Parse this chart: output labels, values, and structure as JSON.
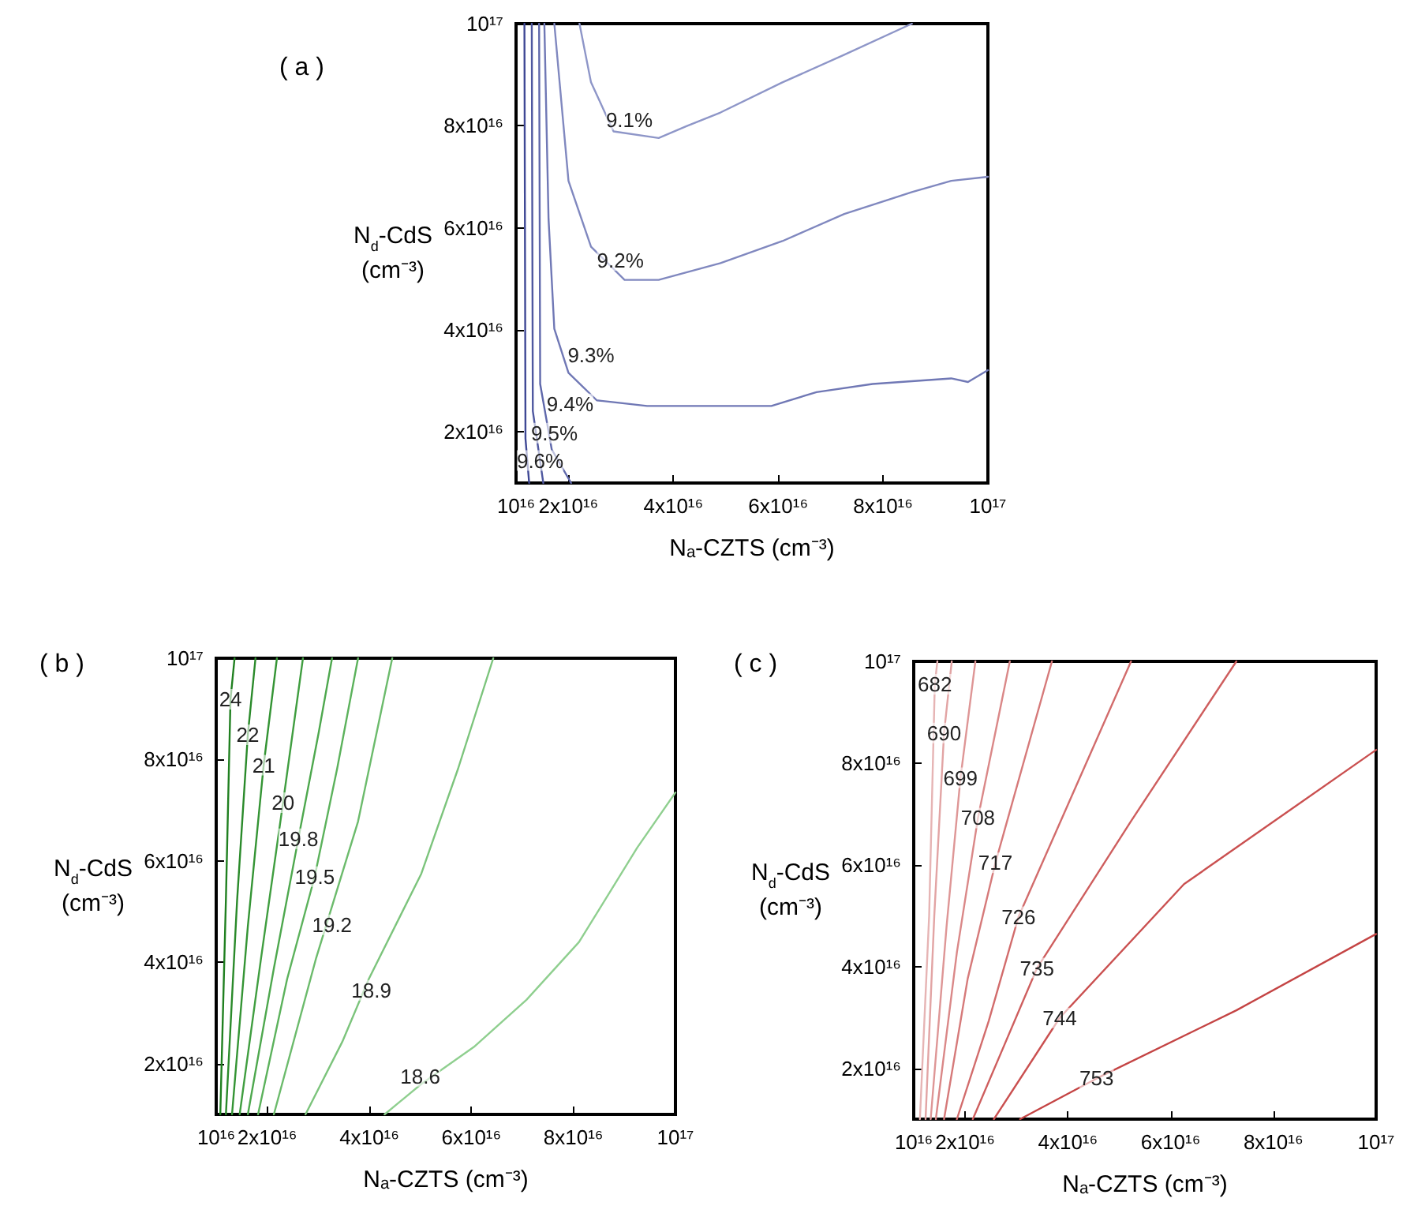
{
  "chart_data": [
    {
      "type": "line",
      "title": "( a )",
      "xlabel": "Nₐ-CZTS (cm⁻³)",
      "ylabel": "N$_{d}$-CdS\n(cm⁻³)",
      "xlim": [
        1e+16,
        1e+17
      ],
      "ylim": [
        1e+16,
        1e+17
      ],
      "xticks": [
        {
          "value": 1e+16,
          "label": "10¹⁶"
        },
        {
          "value": 2e+16,
          "label": "2x10¹⁶"
        },
        {
          "value": 4e+16,
          "label": "4x10¹⁶"
        },
        {
          "value": 6e+16,
          "label": "6x10¹⁶"
        },
        {
          "value": 8e+16,
          "label": "8x10¹⁶"
        },
        {
          "value": 1e+17,
          "label": "10¹⁷"
        }
      ],
      "yticks": [
        {
          "value": 2e+16,
          "label": "2x10¹⁶"
        },
        {
          "value": 4e+16,
          "label": "4x10¹⁶"
        },
        {
          "value": 6e+16,
          "label": "6x10¹⁶"
        },
        {
          "value": 8e+16,
          "label": "8x10¹⁶"
        },
        {
          "value": 1e+17,
          "label": "10¹⁷"
        }
      ],
      "grid": false,
      "marker": "none",
      "line_style": "solid",
      "series": [
        {
          "color": "#8e96c8",
          "x": [
            2.21e+16,
            2.43e+16,
            2.86e+16,
            3.72e+16,
            4.25e+16,
            4.9e+16,
            6.08e+16,
            7.26e+16,
            8.55e+16
          ],
          "values": [
            1e+17,
            8.85e+16,
            7.89e+16,
            7.76e+16,
            7.99e+16,
            8.26e+16,
            8.85e+16,
            9.39e+16,
            1e+17
          ]
        },
        {
          "color": "#8088bf",
          "x": [
            1.73e+16,
            2e+16,
            2.43e+16,
            3.07e+16,
            3.72e+16,
            4.9e+16,
            6.08e+16,
            7.26e+16,
            8.55e+16,
            9.3e+16,
            1e+17
          ],
          "values": [
            1e+17,
            6.92e+16,
            5.63e+16,
            4.98e+16,
            4.98e+16,
            5.31e+16,
            5.74e+16,
            6.27e+16,
            6.7e+16,
            6.92e+16,
            7e+16
          ]
        },
        {
          "color": "#7078b5",
          "x": [
            1.54e+16,
            1.62e+16,
            1.73e+16,
            2e+16,
            2.54e+16,
            3.5e+16,
            5.87e+16,
            6.73e+16,
            7.8e+16,
            9.3e+16,
            9.62e+16,
            1e+17
          ],
          "values": [
            1e+17,
            6.17e+16,
            4.02e+16,
            3.16e+16,
            2.62e+16,
            2.51e+16,
            2.51e+16,
            2.78e+16,
            2.94e+16,
            3.05e+16,
            2.98e+16,
            3.21e+16
          ]
        },
        {
          "color": "#5f68ab",
          "x": [
            1.44e+16,
            1.46e+16,
            1.68e+16,
            2.05e+16
          ],
          "values": [
            1e+17,
            2.94e+16,
            1.66e+16,
            1e+16
          ]
        },
        {
          "color": "#4f58a0",
          "x": [
            1.3e+16,
            1.32e+16,
            1.52e+16
          ],
          "values": [
            1e+17,
            2.41e+16,
            1e+16
          ]
        },
        {
          "color": "#3f4895",
          "x": [
            1.16e+16,
            1.18e+16,
            1.25e+16
          ],
          "values": [
            1e+17,
            1.87e+16,
            1e+16
          ]
        }
      ],
      "annotations": [
        {
          "text": "9.1%",
          "x": 3.16e+16,
          "y": 8.12e+16
        },
        {
          "text": "9.2%",
          "x": 2.99e+16,
          "y": 5.36e+16
        },
        {
          "text": "9.3%",
          "x": 2.43e+16,
          "y": 3.5e+16
        },
        {
          "text": "9.4%",
          "x": 2.03e+16,
          "y": 2.55e+16
        },
        {
          "text": "9.5%",
          "x": 1.73e+16,
          "y": 1.98e+16
        },
        {
          "text": "9.6%",
          "x": 1.46e+16,
          "y": 1.44e+16
        }
      ]
    },
    {
      "type": "line",
      "title": "( b )",
      "xlabel": "Nₐ-CZTS (cm⁻³)",
      "ylabel": "N$_{d}$-CdS\n(cm⁻³)",
      "xlim": [
        1e+16,
        1e+17
      ],
      "ylim": [
        1e+16,
        1e+17
      ],
      "xticks": [
        {
          "value": 1e+16,
          "label": "10¹⁶"
        },
        {
          "value": 2e+16,
          "label": "2x10¹⁶"
        },
        {
          "value": 4e+16,
          "label": "4x10¹⁶"
        },
        {
          "value": 6e+16,
          "label": "6x10¹⁶"
        },
        {
          "value": 8e+16,
          "label": "8x10¹⁶"
        },
        {
          "value": 1e+17,
          "label": "10¹⁷"
        }
      ],
      "yticks": [
        {
          "value": 2e+16,
          "label": "2x10¹⁶"
        },
        {
          "value": 4e+16,
          "label": "4x10¹⁶"
        },
        {
          "value": 6e+16,
          "label": "6x10¹⁶"
        },
        {
          "value": 8e+16,
          "label": "8x10¹⁶"
        },
        {
          "value": 1e+17,
          "label": "10¹⁷"
        }
      ],
      "grid": false,
      "marker": "none",
      "line_style": "solid",
      "series": [
        {
          "color": "#8fcf8f",
          "x": [
            4.3e+16,
            5.02e+16,
            6.05e+16,
            7.08e+16,
            8.11e+16,
            9.25e+16,
            1e+17
          ],
          "values": [
            1e+16,
            1.6e+16,
            2.33e+16,
            3.26e+16,
            4.4e+16,
            6.26e+16,
            7.35e+16
          ]
        },
        {
          "color": "#7cc47c",
          "x": [
            2.75e+16,
            3.47e+16,
            3.99e+16,
            5.02e+16,
            5.74e+16,
            6.43e+16
          ],
          "values": [
            1e+16,
            2.43e+16,
            3.67e+16,
            5.75e+16,
            7.82e+16,
            1e+17
          ]
        },
        {
          "color": "#6cbb6c",
          "x": [
            2.13e+16,
            2.96e+16,
            3.78e+16,
            4.45e+16
          ],
          "values": [
            1e+16,
            4.09e+16,
            6.78e+16,
            1e+17
          ]
        },
        {
          "color": "#5cb25c",
          "x": [
            1.82e+16,
            2.39e+16,
            2.93e+16,
            3.37e+16,
            3.78e+16
          ],
          "values": [
            1e+16,
            3.67e+16,
            5.69e+16,
            7.82e+16,
            1e+17
          ]
        },
        {
          "color": "#4ea84e",
          "x": [
            1.62e+16,
            2.13e+16,
            2.61e+16,
            3.01e+16,
            3.27e+16
          ],
          "values": [
            1e+16,
            3.88e+16,
            6.44e+16,
            8.54e+16,
            1e+17
          ]
        },
        {
          "color": "#409e40",
          "x": [
            1.46e+16,
            1.88e+16,
            2.31e+16,
            2.7e+16
          ],
          "values": [
            1e+16,
            4.09e+16,
            7.15e+16,
            1e+17
          ]
        },
        {
          "color": "#349434",
          "x": [
            1.31e+16,
            1.62e+16,
            1.93e+16,
            2.19e+16
          ],
          "values": [
            1e+16,
            4.71e+16,
            7.89e+16,
            1e+17
          ]
        },
        {
          "color": "#2a8a2a",
          "x": [
            1.19e+16,
            1.41e+16,
            1.62e+16,
            1.77e+16
          ],
          "values": [
            1e+16,
            5.23e+16,
            8.49e+16,
            1e+17
          ]
        },
        {
          "color": "#208020",
          "x": [
            1.08e+16,
            1.19e+16,
            1.28e+16,
            1.36e+16
          ],
          "values": [
            1e+16,
            5.23e+16,
            9.19e+16,
            1e+17
          ]
        }
      ],
      "annotations": [
        {
          "text": "18.6",
          "x": 5e+16,
          "y": 1.75e+16
        },
        {
          "text": "18.9",
          "x": 4.04e+16,
          "y": 3.45e+16
        },
        {
          "text": "19.2",
          "x": 3.27e+16,
          "y": 4.74e+16
        },
        {
          "text": "19.5",
          "x": 2.93e+16,
          "y": 5.69e+16
        },
        {
          "text": "19.8",
          "x": 2.61e+16,
          "y": 6.44e+16
        },
        {
          "text": "20",
          "x": 2.31e+16,
          "y": 7.15e+16
        },
        {
          "text": "21",
          "x": 1.93e+16,
          "y": 7.89e+16
        },
        {
          "text": "22",
          "x": 1.62e+16,
          "y": 8.49e+16
        },
        {
          "text": "24",
          "x": 1.28e+16,
          "y": 9.19e+16
        }
      ]
    },
    {
      "type": "line",
      "title": "( c )",
      "xlabel": "Nₐ-CZTS (cm⁻³)",
      "ylabel": "N$_{d}$-CdS\n(cm⁻³)",
      "xlim": [
        1e+16,
        1e+17
      ],
      "ylim": [
        1e+16,
        1e+17
      ],
      "xticks": [
        {
          "value": 1e+16,
          "label": "10¹⁶"
        },
        {
          "value": 2e+16,
          "label": "2x10¹⁶"
        },
        {
          "value": 4e+16,
          "label": "4x10¹⁶"
        },
        {
          "value": 6e+16,
          "label": "6x10¹⁶"
        },
        {
          "value": 8e+16,
          "label": "8x10¹⁶"
        },
        {
          "value": 1e+17,
          "label": "10¹⁷"
        }
      ],
      "yticks": [
        {
          "value": 2e+16,
          "label": "2x10¹⁶"
        },
        {
          "value": 4e+16,
          "label": "4x10¹⁶"
        },
        {
          "value": 6e+16,
          "label": "6x10¹⁶"
        },
        {
          "value": 8e+16,
          "label": "8x10¹⁶"
        },
        {
          "value": 1e+17,
          "label": "10¹⁷"
        }
      ],
      "grid": false,
      "marker": "none",
      "line_style": "solid",
      "series": [
        {
          "color": "#e6b4b4",
          "x": [
            1.12e+16,
            1.3e+16,
            1.41e+16,
            1.46e+16
          ],
          "values": [
            1e+16,
            5e+16,
            9.55e+16,
            1e+17
          ]
        },
        {
          "color": "#e2a4a4",
          "x": [
            1.23e+16,
            1.4e+16,
            1.59e+16,
            1.74e+16
          ],
          "values": [
            1e+16,
            5e+16,
            8.59e+16,
            1e+17
          ]
        },
        {
          "color": "#de9696",
          "x": [
            1.33e+16,
            1.64e+16,
            1.91e+16,
            2.2e+16
          ],
          "values": [
            1e+16,
            4.8e+16,
            7.71e+16,
            1e+17
          ]
        },
        {
          "color": "#da8888",
          "x": [
            1.43e+16,
            1.84e+16,
            2.25e+16,
            2.87e+16
          ],
          "values": [
            1e+16,
            4.28e+16,
            6.92e+16,
            1e+17
          ]
        },
        {
          "color": "#d67a7a",
          "x": [
            1.59e+16,
            2.05e+16,
            2.59e+16,
            3.69e+16
          ],
          "values": [
            1e+16,
            3.76e+16,
            6.04e+16,
            1e+17
          ]
        },
        {
          "color": "#d26c6c",
          "x": [
            1.84e+16,
            2.46e+16,
            3.04e+16,
            5.23e+16
          ],
          "values": [
            1e+16,
            2.93e+16,
            4.98e+16,
            1e+17
          ]
        },
        {
          "color": "#ce5e5e",
          "x": [
            2.15e+16,
            3.4e+16,
            5.23e+16,
            7.28e+16
          ],
          "values": [
            1e+16,
            3.97e+16,
            6.86e+16,
            1e+17
          ]
        },
        {
          "color": "#ca5050",
          "x": [
            2.56e+16,
            3.84e+16,
            6.26e+16,
            1e+17
          ],
          "values": [
            1e+16,
            2.99e+16,
            5.62e+16,
            8.26e+16
          ]
        },
        {
          "color": "#c44444",
          "x": [
            3.07e+16,
            4.56e+16,
            7.28e+16,
            1e+17
          ],
          "values": [
            1e+16,
            1.8e+16,
            3.14e+16,
            4.64e+16
          ]
        }
      ],
      "annotations": [
        {
          "text": "682",
          "x": 1.41e+16,
          "y": 9.55e+16
        },
        {
          "text": "690",
          "x": 1.59e+16,
          "y": 8.59e+16
        },
        {
          "text": "699",
          "x": 1.91e+16,
          "y": 7.71e+16
        },
        {
          "text": "708",
          "x": 2.25e+16,
          "y": 6.92e+16
        },
        {
          "text": "717",
          "x": 2.59e+16,
          "y": 6.04e+16
        },
        {
          "text": "726",
          "x": 3.04e+16,
          "y": 4.98e+16
        },
        {
          "text": "735",
          "x": 3.4e+16,
          "y": 3.97e+16
        },
        {
          "text": "744",
          "x": 3.84e+16,
          "y": 2.99e+16
        },
        {
          "text": "753",
          "x": 4.56e+16,
          "y": 1.8e+16
        }
      ]
    }
  ]
}
